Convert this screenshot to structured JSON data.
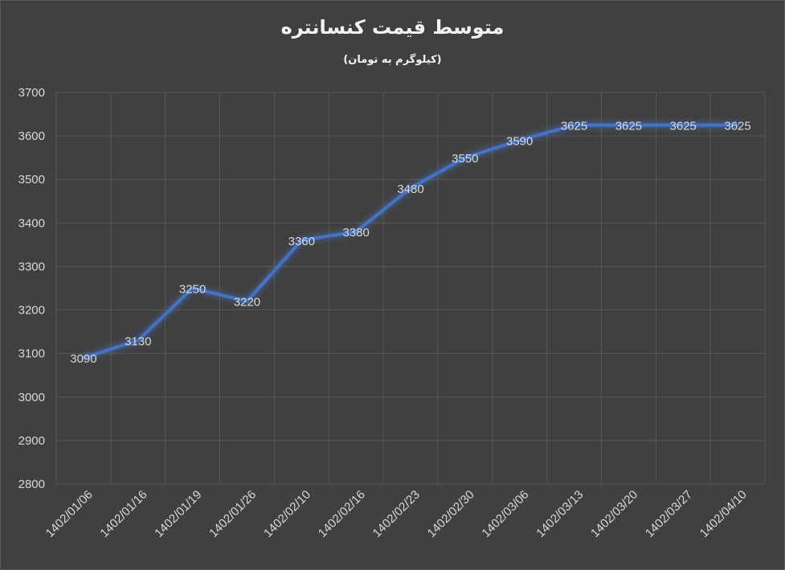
{
  "chart_data": {
    "type": "line",
    "title": "متوسط قیمت کنسانتره",
    "subtitle": "(کیلوگرم به تومان)",
    "xlabel": "",
    "ylabel": "",
    "categories": [
      "1402/01/06",
      "1402/01/16",
      "1402/01/19",
      "1402/01/26",
      "1402/02/10",
      "1402/02/16",
      "1402/02/23",
      "1402/02/30",
      "1402/03/06",
      "1402/03/13",
      "1402/03/20",
      "1402/03/27",
      "1402/04/10"
    ],
    "series": [
      {
        "values": [
          3090,
          3130,
          3250,
          3220,
          3360,
          3380,
          3480,
          3550,
          3590,
          3625,
          3625,
          3625,
          3625
        ],
        "color": "#4472c4"
      }
    ],
    "ylim": [
      2800,
      3700
    ],
    "yticks": [
      2800,
      2900,
      3000,
      3100,
      3200,
      3300,
      3400,
      3500,
      3600,
      3700
    ],
    "grid": true,
    "legend": "none",
    "data_labels": true
  },
  "colors": {
    "background": "#404040",
    "grid": "#595959",
    "text": "#d9d9d9",
    "line": "#4472c4"
  }
}
